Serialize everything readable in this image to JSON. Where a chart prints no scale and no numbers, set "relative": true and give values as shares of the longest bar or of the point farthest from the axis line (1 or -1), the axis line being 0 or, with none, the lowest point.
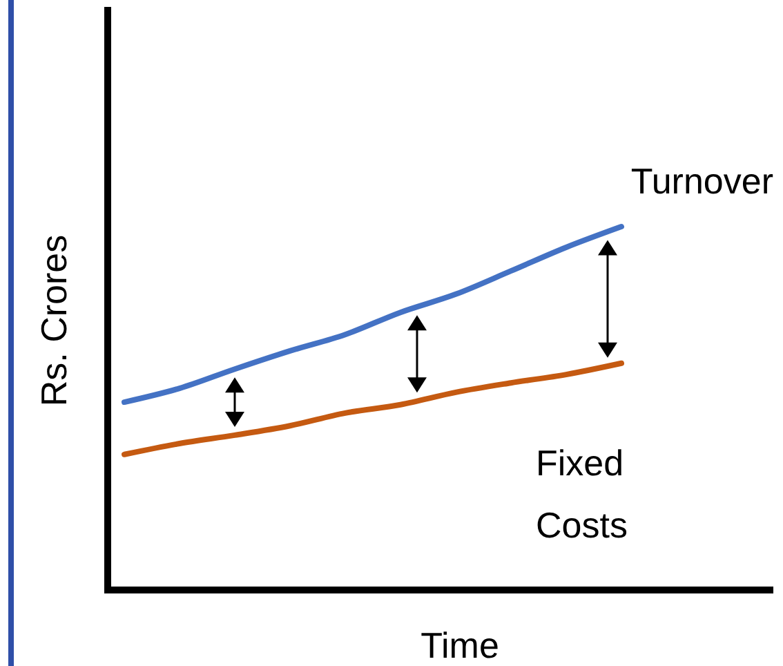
{
  "chart_data": {
    "type": "line",
    "relative": true,
    "xlabel": "Time",
    "ylabel": "Rs. Crores",
    "legend": false,
    "categories": [
      null,
      null,
      null,
      null,
      null,
      null,
      null,
      null,
      null,
      null
    ],
    "series": [
      {
        "name": "Turnover",
        "color": "#4472c4",
        "values": [
          0.517,
          0.555,
          0.608,
          0.658,
          0.703,
          0.764,
          0.814,
          0.878,
          0.943,
          1
        ]
      },
      {
        "name": "Fixed Costs",
        "color": "#c55a11",
        "values": [
          0.373,
          0.403,
          0.426,
          0.452,
          0.487,
          0.51,
          0.544,
          0.57,
          0.593,
          0.624
        ]
      }
    ]
  }
}
